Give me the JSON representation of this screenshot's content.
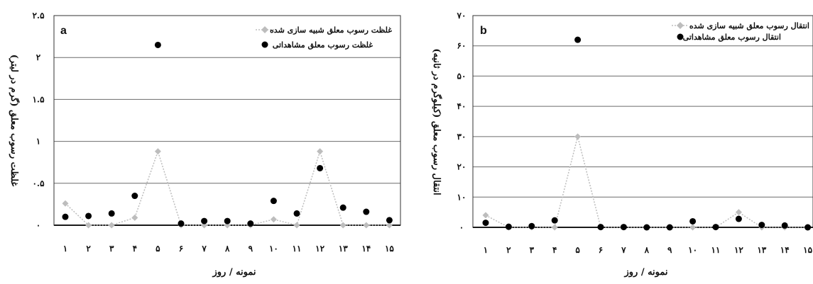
{
  "chart_data": [
    {
      "type": "line",
      "panel_label": "a",
      "xlabel": "نمونه / روز",
      "ylabel": "غلظت رسوب معلق (گرم در لیتر)",
      "categories": [
        "۱",
        "۲",
        "۳",
        "۴",
        "۵",
        "۶",
        "۷",
        "۸",
        "۹",
        "۱۰",
        "۱۱",
        "۱۲",
        "۱۳",
        "۱۴",
        "۱۵"
      ],
      "x": [
        1,
        2,
        3,
        4,
        5,
        6,
        7,
        8,
        9,
        10,
        11,
        12,
        13,
        14,
        15
      ],
      "yticks": [
        0,
        0.5,
        1,
        1.5,
        2,
        2.5
      ],
      "ytick_labels": [
        "۰",
        "۰.۵",
        "۱",
        "۱.۵",
        "۲",
        "۲.۵"
      ],
      "ylim": [
        0,
        2.5
      ],
      "grid": true,
      "legend_position": "top-right",
      "series": [
        {
          "name": "غلظت رسوب معلق شبیه سازی شده",
          "marker": "diamond",
          "line": "dotted",
          "color": "#bdbdbd",
          "values": [
            0.26,
            0.0,
            0.0,
            0.09,
            0.88,
            0.0,
            0.0,
            0.0,
            0.0,
            0.07,
            0.0,
            0.88,
            0.0,
            0.0,
            0.0
          ]
        },
        {
          "name": "غلظت رسوب معلق مشاهداتی",
          "marker": "circle",
          "line": "none",
          "color": "#000000",
          "values": [
            0.1,
            0.11,
            0.14,
            0.35,
            2.15,
            0.02,
            0.05,
            0.05,
            0.02,
            0.29,
            0.14,
            0.68,
            0.21,
            0.16,
            0.06
          ]
        }
      ]
    },
    {
      "type": "line",
      "panel_label": "b",
      "xlabel": "نمونه / روز",
      "ylabel": "انتقال رسوب معلق (کیلوگرم در ثانیه)",
      "categories": [
        "۱",
        "۲",
        "۳",
        "۴",
        "۵",
        "۶",
        "۷",
        "۸",
        "۹",
        "۱۰",
        "۱۱",
        "۱۲",
        "۱۳",
        "۱۴",
        "۱۵"
      ],
      "x": [
        1,
        2,
        3,
        4,
        5,
        6,
        7,
        8,
        9,
        10,
        11,
        12,
        13,
        14,
        15
      ],
      "yticks": [
        0,
        10,
        20,
        30,
        40,
        50,
        60,
        70
      ],
      "ytick_labels": [
        "۰",
        "۱۰",
        "۲۰",
        "۳۰",
        "۴۰",
        "۵۰",
        "۶۰",
        "۷۰"
      ],
      "ylim": [
        0,
        70
      ],
      "grid": true,
      "legend_position": "top-right",
      "series": [
        {
          "name": "انتقال رسوب معلق شبیه سازی شده",
          "marker": "diamond",
          "line": "dotted",
          "color": "#bdbdbd",
          "values": [
            4.0,
            0.0,
            0.0,
            0.0,
            30.0,
            0.0,
            0.0,
            0.0,
            0.0,
            0.0,
            0.0,
            5.0,
            0.0,
            0.0,
            0.0
          ]
        },
        {
          "name": "انتقال رسوب معلق مشاهداتی",
          "marker": "circle",
          "line": "none",
          "color": "#000000",
          "values": [
            1.5,
            0.2,
            0.4,
            2.3,
            62.0,
            0.1,
            0.1,
            0.0,
            0.0,
            2.0,
            0.1,
            2.8,
            0.8,
            0.6,
            0.0
          ]
        }
      ]
    }
  ]
}
